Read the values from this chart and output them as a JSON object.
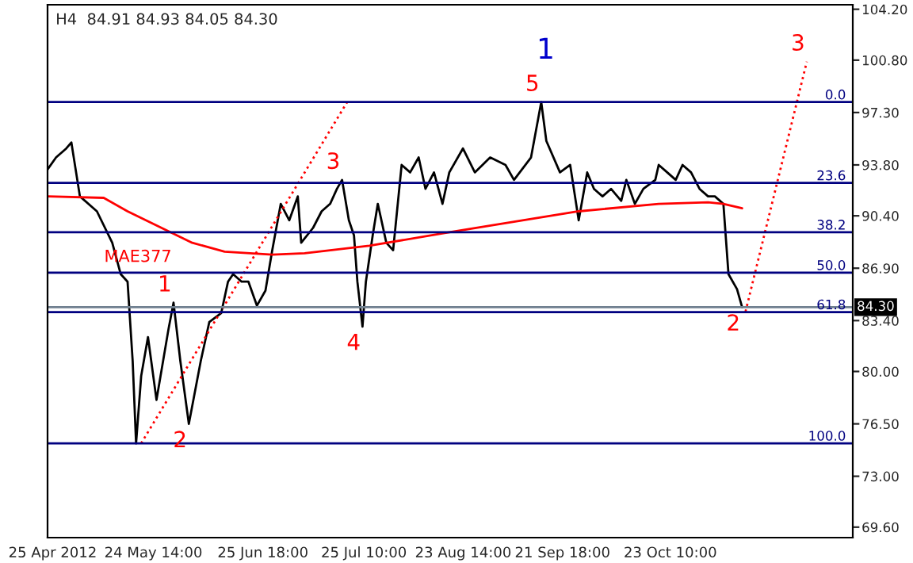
{
  "chart_data": {
    "type": "line",
    "title": "H4  84.91 84.93 84.05 84.30",
    "xlim": [
      "2012-04-23T12:00",
      "2012-12-16"
    ],
    "ylim": [
      68.9,
      104.5
    ],
    "xticks": [
      {
        "value": "2012-04-25",
        "label": "25 Apr 2012"
      },
      {
        "value": "2012-05-24T14:00",
        "label": "24 May 14:00"
      },
      {
        "value": "2012-06-25T18:00",
        "label": "25 Jun 18:00"
      },
      {
        "value": "2012-07-25T10:00",
        "label": "25 Jul 10:00"
      },
      {
        "value": "2012-08-23T14:00",
        "label": "23 Aug 14:00"
      },
      {
        "value": "2012-09-21T18:00",
        "label": "21 Sep 18:00"
      },
      {
        "value": "2012-10-23T10:00",
        "label": "23 Oct 10:00"
      }
    ],
    "yticks": [
      {
        "value": 104.2,
        "label": "104.20"
      },
      {
        "value": 100.8,
        "label": "100.80"
      },
      {
        "value": 97.3,
        "label": "97.30"
      },
      {
        "value": 93.8,
        "label": "93.80"
      },
      {
        "value": 90.4,
        "label": "90.40"
      },
      {
        "value": 86.9,
        "label": "86.90"
      },
      {
        "value": 83.4,
        "label": "83.40"
      },
      {
        "value": 80.0,
        "label": "80.00"
      },
      {
        "value": 76.5,
        "label": "76.50"
      },
      {
        "value": 73.0,
        "label": "73.00"
      },
      {
        "value": 69.6,
        "label": "69.60"
      }
    ],
    "grid": false,
    "series": [
      {
        "color": "#000000",
        "line_style": "solid",
        "x": [
          "2012-04-23T12:00",
          "2012-04-26",
          "2012-04-29",
          "2012-04-30T12:00",
          "2012-05-03",
          "2012-05-08",
          "2012-05-12T12:00",
          "2012-05-15",
          "2012-05-17",
          "2012-05-18T12:00",
          "2012-05-19T12:00",
          "2012-05-21",
          "2012-05-23",
          "2012-05-25T12:00",
          "2012-05-29",
          "2012-05-30T12:00",
          "2012-06-01T12:00",
          "2012-06-04",
          "2012-06-07T12:00",
          "2012-06-10",
          "2012-06-13T12:00",
          "2012-06-15T12:00",
          "2012-06-17",
          "2012-06-19T12:00",
          "2012-06-21T12:00",
          "2012-06-24",
          "2012-06-26T12:00",
          "2012-06-28T12:00",
          "2012-07-01",
          "2012-07-03T12:00",
          "2012-07-06",
          "2012-07-07",
          "2012-07-10T12:00",
          "2012-07-13",
          "2012-07-15T12:00",
          "2012-07-17T12:00",
          "2012-07-19",
          "2012-07-21",
          "2012-07-22T12:00",
          "2012-07-23T12:00",
          "2012-07-25",
          "2012-07-26",
          "2012-07-28",
          "2012-07-29T12:00",
          "2012-08-01",
          "2012-08-03",
          "2012-08-05T12:00",
          "2012-08-08",
          "2012-08-10T12:00",
          "2012-08-12T12:00",
          "2012-08-15",
          "2012-08-17T12:00",
          "2012-08-19T12:00",
          "2012-08-23T12:00",
          "2012-08-27",
          "2012-08-31T12:00",
          "2012-09-05",
          "2012-09-07T12:00",
          "2012-09-12T12:00",
          "2012-09-15T12:00",
          "2012-09-17",
          "2012-09-21",
          "2012-09-24",
          "2012-09-26T12:00",
          "2012-09-29",
          "2012-10-01",
          "2012-10-03T12:00",
          "2012-10-06",
          "2012-10-09",
          "2012-10-10T12:00",
          "2012-10-13",
          "2012-10-15T12:00",
          "2012-10-19",
          "2012-10-20",
          "2012-10-22T12:00",
          "2012-10-25",
          "2012-10-27",
          "2012-10-29T12:00",
          "2012-11-01",
          "2012-11-03T12:00",
          "2012-11-05T12:00",
          "2012-11-08",
          "2012-11-09T12:00",
          "2012-11-12",
          "2012-11-13T12:00"
        ],
        "values": [
          93.5,
          94.3,
          94.9,
          95.3,
          91.7,
          90.7,
          88.6,
          86.5,
          86.0,
          80.7,
          75.2,
          79.7,
          82.3,
          78.1,
          82.8,
          84.6,
          80.7,
          76.5,
          80.7,
          83.3,
          83.9,
          86.0,
          86.5,
          86.0,
          86.0,
          84.4,
          85.4,
          88.1,
          91.2,
          90.1,
          91.7,
          88.6,
          89.6,
          90.7,
          91.2,
          92.2,
          92.8,
          90.1,
          89.1,
          86.0,
          83.0,
          86.0,
          89.1,
          91.2,
          88.6,
          88.1,
          93.8,
          93.3,
          94.3,
          92.2,
          93.3,
          91.2,
          93.3,
          94.9,
          93.3,
          94.3,
          93.8,
          92.8,
          94.3,
          98.0,
          95.4,
          93.3,
          93.8,
          90.1,
          93.3,
          92.2,
          91.7,
          92.2,
          91.4,
          92.8,
          91.2,
          92.2,
          92.8,
          93.8,
          93.3,
          92.8,
          93.8,
          93.3,
          92.2,
          91.7,
          91.7,
          91.2,
          86.5,
          85.5,
          84.3
        ]
      },
      {
        "name": "MAE377",
        "color": "#ff0000",
        "line_style": "solid",
        "x": [
          "2012-04-23T12:00",
          "2012-05-10",
          "2012-05-17",
          "2012-06-05",
          "2012-06-14T12:00",
          "2012-06-28T12:00",
          "2012-07-08",
          "2012-07-27",
          "2012-08-19T12:00",
          "2012-09-07T12:00",
          "2012-09-26T12:00",
          "2012-10-20",
          "2012-11-03T12:00",
          "2012-11-08",
          "2012-11-13T12:00"
        ],
        "values": [
          91.7,
          91.6,
          90.7,
          88.6,
          88.0,
          87.8,
          87.9,
          88.4,
          89.3,
          90.0,
          90.7,
          91.2,
          91.3,
          91.2,
          90.9
        ]
      },
      {
        "color": "#ff0000",
        "line_style": "dotted",
        "x": [
          "2012-05-21",
          "2012-07-20T12:00"
        ],
        "values": [
          75.2,
          98.0
        ]
      },
      {
        "color": "#ff0000",
        "line_style": "dotted",
        "x": [
          "2012-11-14T12:00",
          "2012-12-02T12:00"
        ],
        "values": [
          84.0,
          100.7
        ]
      }
    ],
    "ref_lines": [
      {
        "axis": "y",
        "value": 98.0,
        "color": "#000080"
      },
      {
        "axis": "y",
        "value": 92.6,
        "color": "#000080"
      },
      {
        "axis": "y",
        "value": 89.3,
        "color": "#000080"
      },
      {
        "axis": "y",
        "value": 86.6,
        "color": "#000080"
      },
      {
        "axis": "y",
        "value": 83.97,
        "color": "#000080"
      },
      {
        "axis": "y",
        "value": 75.2,
        "color": "#000080"
      },
      {
        "axis": "y",
        "value": 84.3,
        "label": "84.30",
        "color": "#708090"
      }
    ],
    "annotations": [
      {
        "text": "0.0",
        "x": "2012-12-14",
        "y": 98.0
      },
      {
        "text": "23.6",
        "x": "2012-12-14",
        "y": 92.6
      },
      {
        "text": "38.2",
        "x": "2012-12-14",
        "y": 89.3
      },
      {
        "text": "50.0",
        "x": "2012-12-14",
        "y": 86.6
      },
      {
        "text": "61.8",
        "x": "2012-12-14",
        "y": 83.97
      },
      {
        "text": "100.0",
        "x": "2012-12-14",
        "y": 75.2
      },
      {
        "text": "1",
        "x": "2012-05-30T12:00",
        "y": 84.6
      },
      {
        "text": "2",
        "x": "2012-06-04",
        "y": 76.5
      },
      {
        "text": "3",
        "x": "2012-07-19",
        "y": 92.8
      },
      {
        "text": "4",
        "x": "2012-07-25",
        "y": 83.0
      },
      {
        "text": "5",
        "x": "2012-09-15T12:00",
        "y": 98.0
      },
      {
        "text": "1",
        "x": "2012-09-15T12:00",
        "y": 98.0
      },
      {
        "text": "2",
        "x": "2012-11-13T12:00",
        "y": 84.3
      },
      {
        "text": "3",
        "x": "2012-12-02T12:00",
        "y": 100.7
      }
    ]
  }
}
